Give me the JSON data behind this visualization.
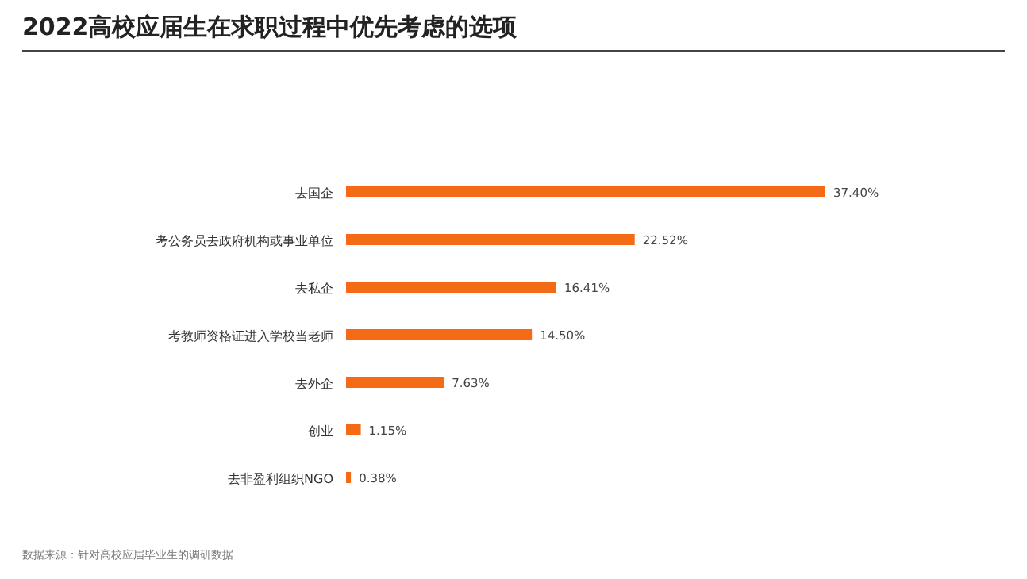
{
  "chart_data": {
    "type": "bar",
    "orientation": "horizontal",
    "title": "2022高校应届生在求职过程中优先考虑的选项",
    "categories": [
      "去国企",
      "考公务员去政府机构或事业单位",
      "去私企",
      "考教师资格证进入学校当老师",
      "去外企",
      "创业",
      "去非盈利组织NGO"
    ],
    "values": [
      37.4,
      22.52,
      16.41,
      14.5,
      7.63,
      1.15,
      0.38
    ],
    "value_labels": [
      "37.40%",
      "22.52%",
      "16.41%",
      "14.50%",
      "7.63%",
      "1.15%",
      "0.38%"
    ],
    "color": "#f56a14",
    "annotations": [
      "数据来源：针对高校应届毕业生的调研数据"
    ]
  }
}
